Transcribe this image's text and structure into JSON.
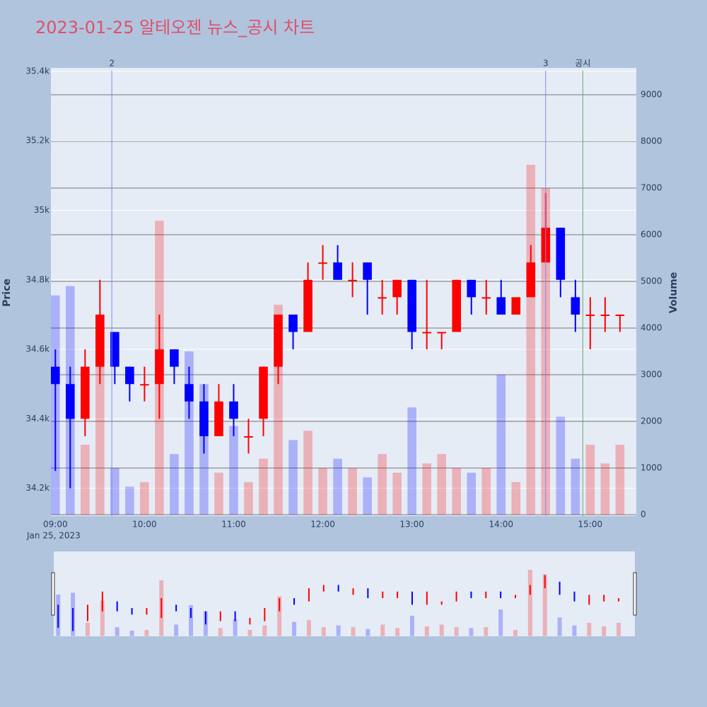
{
  "chart_data": {
    "type": "candlestick",
    "title": "2023-01-25 알테오젠 뉴스_공시 차트",
    "date_label": "Jan 25, 2023",
    "y_title": "Price",
    "y2_title": "Volume",
    "x": [
      "09:00",
      "09:10",
      "09:20",
      "09:30",
      "09:40",
      "09:50",
      "10:00",
      "10:10",
      "10:20",
      "10:30",
      "10:40",
      "10:50",
      "11:00",
      "11:10",
      "11:20",
      "11:30",
      "11:40",
      "11:50",
      "12:00",
      "12:10",
      "12:20",
      "12:30",
      "12:40",
      "12:50",
      "13:00",
      "13:10",
      "13:20",
      "13:30",
      "13:40",
      "13:50",
      "14:00",
      "14:10",
      "14:20",
      "14:30",
      "14:40",
      "14:50",
      "15:00",
      "15:10",
      "15:20"
    ],
    "open": [
      34550,
      34500,
      34400,
      34550,
      34650,
      34550,
      34500,
      34500,
      34600,
      34500,
      34450,
      34350,
      34450,
      34350,
      34400,
      34550,
      34700,
      34650,
      34850,
      34850,
      34800,
      34850,
      34750,
      34750,
      34800,
      34650,
      34650,
      34650,
      34800,
      34750,
      34750,
      34700,
      34750,
      34850,
      34950,
      34750,
      34700,
      34700,
      34700
    ],
    "high": [
      34600,
      34550,
      34600,
      34800,
      34650,
      34550,
      34550,
      34700,
      34600,
      34550,
      34500,
      34500,
      34500,
      34400,
      34550,
      34700,
      34700,
      34850,
      34900,
      34900,
      34850,
      34850,
      34800,
      34800,
      34800,
      34800,
      34650,
      34800,
      34800,
      34800,
      34800,
      34750,
      34900,
      35050,
      34950,
      34800,
      34750,
      34750,
      34700
    ],
    "low": [
      34250,
      34200,
      34350,
      34500,
      34500,
      34450,
      34450,
      34400,
      34500,
      34400,
      34300,
      34350,
      34350,
      34300,
      34350,
      34500,
      34600,
      34650,
      34800,
      34800,
      34750,
      34700,
      34700,
      34700,
      34600,
      34600,
      34600,
      34650,
      34700,
      34700,
      34700,
      34700,
      34750,
      34850,
      34750,
      34650,
      34600,
      34650,
      34650
    ],
    "close": [
      34500,
      34400,
      34550,
      34700,
      34550,
      34500,
      34500,
      34600,
      34550,
      34450,
      34350,
      34450,
      34400,
      34350,
      34550,
      34700,
      34650,
      34800,
      34850,
      34800,
      34800,
      34800,
      34750,
      34800,
      34650,
      34650,
      34650,
      34800,
      34750,
      34750,
      34700,
      34750,
      34850,
      34950,
      34800,
      34700,
      34700,
      34700,
      34700
    ],
    "volume": [
      4700,
      4900,
      1500,
      4000,
      1000,
      600,
      700,
      6300,
      1300,
      3500,
      2800,
      900,
      1900,
      700,
      1200,
      4500,
      1600,
      1800,
      1000,
      1200,
      1000,
      800,
      1300,
      900,
      2300,
      1100,
      1300,
      1000,
      900,
      1000,
      3000,
      700,
      7500,
      7000,
      2100,
      1200,
      1500,
      1100,
      1500
    ],
    "up_color": "#ff0000",
    "down_color": "#0000ff",
    "xlim": [
      "08:57",
      "15:31"
    ],
    "xticks": [
      "09:00",
      "10:00",
      "11:00",
      "12:00",
      "13:00",
      "14:00",
      "15:00"
    ],
    "ylim": [
      34120,
      35410
    ],
    "yticks": [
      {
        "value": 34200,
        "label": "34.2k"
      },
      {
        "value": 34400,
        "label": "34.4k"
      },
      {
        "value": 34600,
        "label": "34.6k"
      },
      {
        "value": 34800,
        "label": "34.8k"
      },
      {
        "value": 35000,
        "label": "35k"
      },
      {
        "value": 35200,
        "label": "35.2k"
      },
      {
        "value": 35400,
        "label": "35.4k"
      }
    ],
    "y2lim": [
      -30,
      9576
    ],
    "y2ticks": [
      0,
      1000,
      2000,
      3000,
      4000,
      5000,
      6000,
      7000,
      8000,
      9000
    ],
    "annotations": [
      {
        "x": "09:38",
        "text": "2",
        "color": "#8888ee"
      },
      {
        "x": "14:30",
        "text": "3",
        "color": "#8888ee"
      },
      {
        "x": "14:55",
        "text": "공시",
        "color": "#66aa66"
      }
    ]
  }
}
